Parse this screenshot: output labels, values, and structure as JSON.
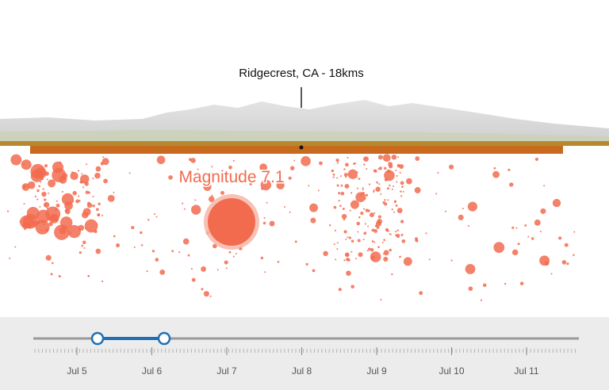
{
  "scene": {
    "location_label": "Ridgecrest, CA - 18kms",
    "highlight_label": "Magnitude 7.1"
  },
  "timeline": {
    "labels": [
      "Jul 5",
      "Jul 6",
      "Jul 7",
      "Jul 8",
      "Jul 9",
      "Jul 10",
      "Jul 11"
    ]
  }
}
